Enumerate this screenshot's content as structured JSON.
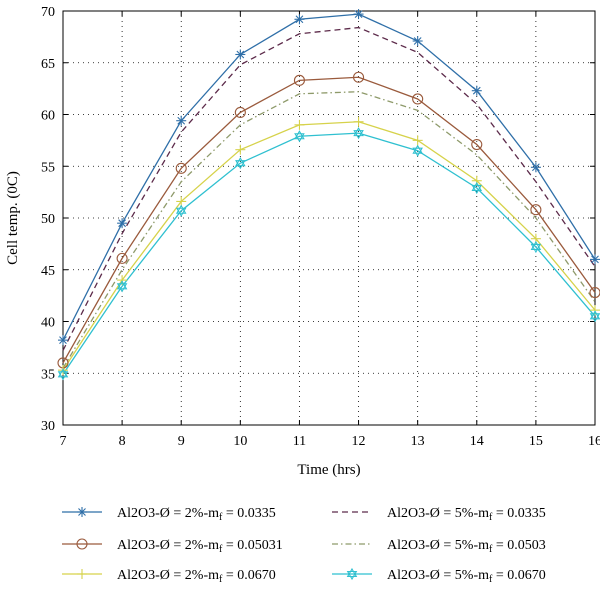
{
  "chart_data": {
    "type": "line",
    "title": "",
    "xlabel": "Time (hrs)",
    "ylabel": "Cell temp. (0C)",
    "x": [
      7,
      8,
      9,
      10,
      11,
      12,
      13,
      14,
      15,
      16
    ],
    "xlim": [
      7,
      16
    ],
    "ylim": [
      30,
      70
    ],
    "xticks": [
      "7",
      "8",
      "9",
      "10",
      "11",
      "12",
      "13",
      "14",
      "15",
      "16"
    ],
    "yticks": [
      "30",
      "35",
      "40",
      "45",
      "50",
      "55",
      "60",
      "65",
      "70"
    ],
    "grid": true,
    "legend_position": "bottom",
    "series": [
      {
        "name": "Al2O3-Ø = 2%-m",
        "sub": "f",
        "tail": " = 0.0335",
        "color": "#2f6fa8",
        "dash": "",
        "marker": "star",
        "values": [
          38.2,
          49.5,
          59.4,
          65.8,
          69.2,
          69.7,
          67.1,
          62.3,
          54.9,
          46.0
        ]
      },
      {
        "name": "Al2O3-Ø = 5%-m",
        "sub": "f",
        "tail": " = 0.0335",
        "color": "#5c2a4a",
        "dash": "6,4",
        "marker": "none",
        "values": [
          37.2,
          48.5,
          58.3,
          64.8,
          67.8,
          68.4,
          66.0,
          61.0,
          53.5,
          45.3
        ]
      },
      {
        "name": "Al2O3-Ø = 2%-m",
        "sub": "f",
        "tail": " = 0.05031",
        "color": "#9a5a3c",
        "dash": "",
        "marker": "circle",
        "values": [
          36.0,
          46.1,
          54.8,
          60.2,
          63.3,
          63.6,
          61.5,
          57.1,
          50.8,
          42.8
        ]
      },
      {
        "name": "Al2O3-Ø = 5%-m",
        "sub": "f",
        "tail": " = 0.0503",
        "color": "#8e9a6a",
        "dash": "6,3,1.5,3",
        "marker": "none",
        "values": [
          35.5,
          45.0,
          53.5,
          59.0,
          62.0,
          62.2,
          60.4,
          56.1,
          50.0,
          41.9
        ]
      },
      {
        "name": "Al2O3-Ø = 2%-m",
        "sub": "f",
        "tail": " = 0.0670",
        "color": "#d6d24a",
        "dash": "",
        "marker": "plus",
        "values": [
          35.3,
          44.0,
          51.6,
          56.6,
          59.0,
          59.3,
          57.5,
          53.6,
          48.0,
          41.1
        ]
      },
      {
        "name": "Al2O3-Ø = 5%-m",
        "sub": "f",
        "tail": " = 0.0670",
        "color": "#2fc0d0",
        "dash": "",
        "marker": "hexstar",
        "values": [
          34.9,
          43.4,
          50.7,
          55.3,
          57.9,
          58.2,
          56.5,
          52.9,
          47.2,
          40.5
        ]
      }
    ]
  }
}
